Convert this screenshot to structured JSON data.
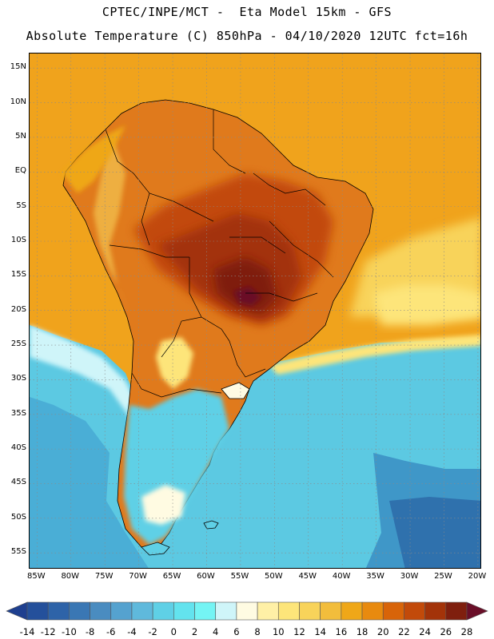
{
  "header": {
    "line1": "CPTEC/INPE/MCT -  Eta Model 15km - GFS",
    "line2": "Absolute Temperature (C) 850hPa - 04/10/2020 12UTC fct=16h"
  },
  "axes": {
    "lat_labels": [
      "15N",
      "10N",
      "5N",
      "EQ",
      "5S",
      "10S",
      "15S",
      "20S",
      "25S",
      "30S",
      "35S",
      "40S",
      "45S",
      "50S",
      "55S"
    ],
    "lat_values": [
      15,
      10,
      5,
      0,
      -5,
      -10,
      -15,
      -20,
      -25,
      -30,
      -35,
      -40,
      -45,
      -50,
      -55
    ],
    "lon_labels": [
      "85W",
      "80W",
      "75W",
      "70W",
      "65W",
      "60W",
      "55W",
      "50W",
      "45W",
      "40W",
      "35W",
      "30W",
      "25W",
      "20W"
    ],
    "lon_values": [
      -85,
      -80,
      -75,
      -70,
      -65,
      -60,
      -55,
      -50,
      -45,
      -40,
      -35,
      -30,
      -25,
      -20
    ],
    "lat_range": [
      -57.4,
      17.1
    ],
    "lon_range": [
      -86.1,
      -19.4
    ],
    "grid": "dotted"
  },
  "colorbar": {
    "labels": [
      "-14",
      "-12",
      "-10",
      "-8",
      "-6",
      "-4",
      "-2",
      "0",
      "2",
      "4",
      "6",
      "8",
      "10",
      "12",
      "14",
      "16",
      "18",
      "20",
      "22",
      "24",
      "26",
      "28"
    ],
    "colors": [
      "#1e3f8f",
      "#24509b",
      "#2e63a8",
      "#3a77b4",
      "#4a8cc0",
      "#55a2cf",
      "#5fb9dc",
      "#5fd0e6",
      "#63e3ee",
      "#74f4f4",
      "#cff5f9",
      "#fffbe2",
      "#fff0a6",
      "#fde57a",
      "#f8d35a",
      "#f2bd3c",
      "#efa718",
      "#e88a0f",
      "#d86409",
      "#c24a0a",
      "#a33309",
      "#7f1f0e",
      "#6a0f28"
    ]
  },
  "map": {
    "land_color": "#e07a1c",
    "ocean_tropical_color": "#f0a31c",
    "ocean_cold_color": "#4bb9d9",
    "hotspot_color": "#7a1a12"
  }
}
